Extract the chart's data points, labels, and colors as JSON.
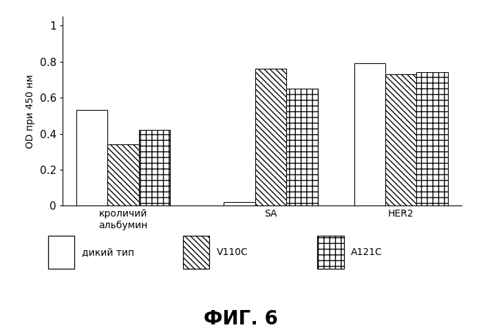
{
  "categories": [
    "кроличий\nальбумин",
    "SA",
    "HER2"
  ],
  "series": {
    "дикий тип": [
      0.53,
      0.02,
      0.79
    ],
    "V110C": [
      0.34,
      0.76,
      0.73
    ],
    "A121C": [
      0.42,
      0.65,
      0.74
    ]
  },
  "ylabel": "OD при 450 нм",
  "ylim": [
    0,
    1.05
  ],
  "yticks": [
    0,
    0.2,
    0.4,
    0.6,
    0.8,
    1
  ],
  "ytick_labels": [
    "0",
    "0.2",
    "0.4",
    "0.6",
    "0.8",
    "1"
  ],
  "title": "ФИГ. 6",
  "legend_labels": [
    "дикий тип",
    "V110C",
    "A121C"
  ],
  "bar_width": 0.18,
  "background_color": "#ffffff",
  "bar_colors": [
    "#ffffff",
    "#ffffff",
    "#ffffff"
  ],
  "hatch_patterns": [
    "",
    "\\\\\\\\",
    "++"
  ],
  "x_positions": [
    0.0,
    0.85,
    1.6
  ]
}
